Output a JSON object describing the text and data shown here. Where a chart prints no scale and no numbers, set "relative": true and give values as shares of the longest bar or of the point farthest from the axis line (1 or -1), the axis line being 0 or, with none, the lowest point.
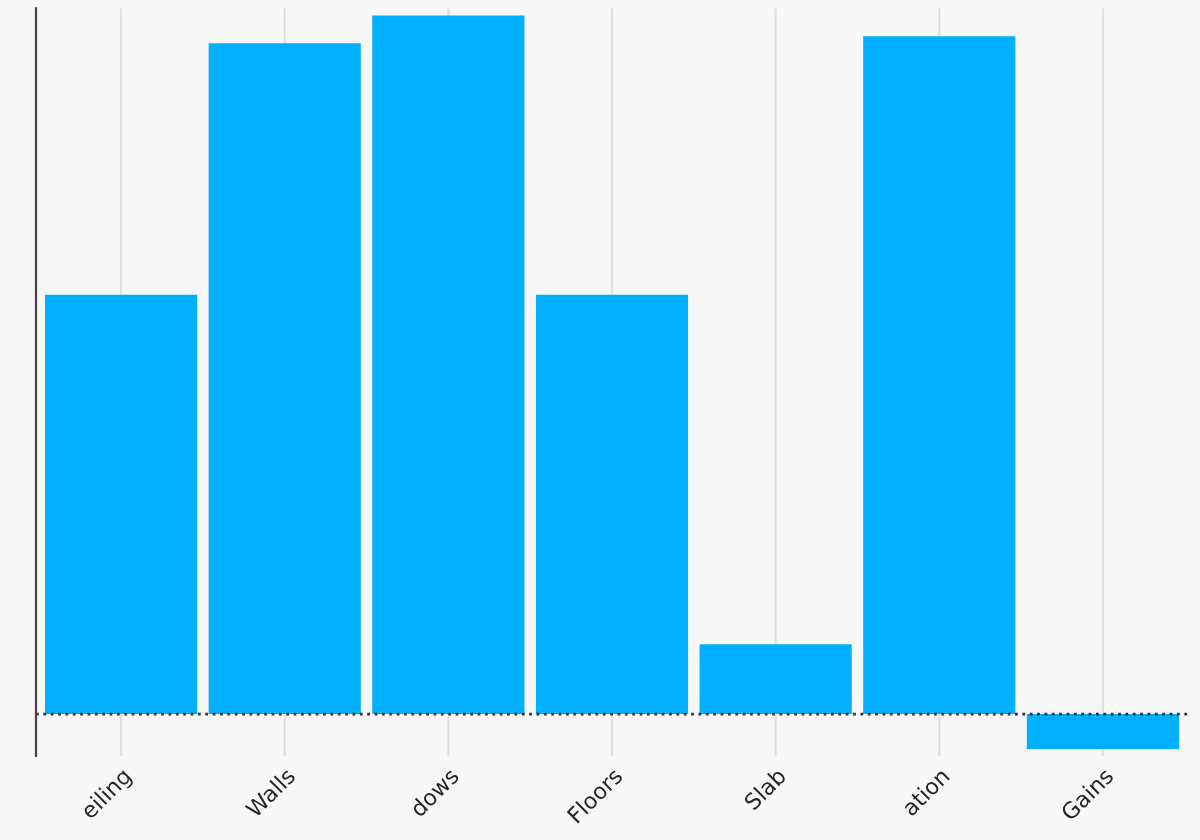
{
  "chart_data": {
    "type": "bar",
    "relative": true,
    "categories": [
      "eiling",
      "Walls",
      "dows",
      "Floors",
      "Slab",
      "ation",
      "Gains"
    ],
    "values": [
      0.6,
      0.96,
      1,
      0.6,
      0.1,
      0.97,
      -0.05
    ],
    "color": "#00b0ff",
    "grid": true,
    "ref_lines": [
      {
        "axis": "y",
        "value": 0,
        "color": "#333333",
        "line_style": "dotted"
      }
    ]
  }
}
